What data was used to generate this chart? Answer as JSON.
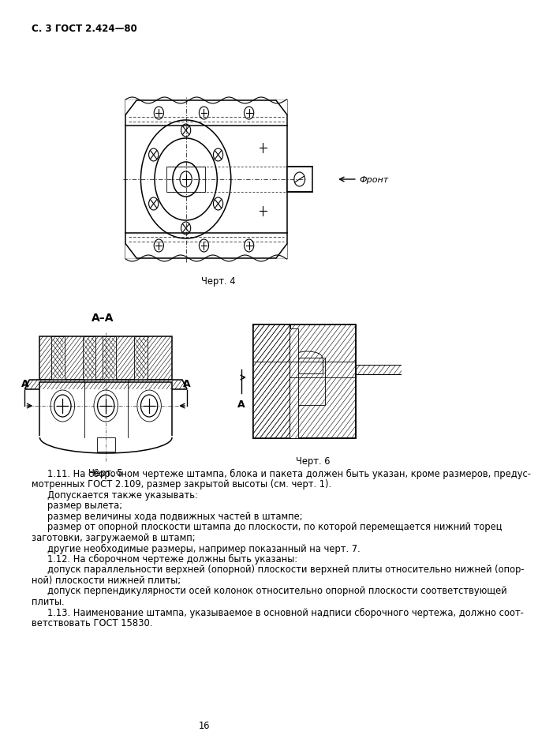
{
  "page_header": "С. 3 ГОСТ 2.424—80",
  "caption4": "Черт. 4",
  "caption5": "Черт. 5",
  "caption6": "Черт. 6",
  "front_label": "Фронт",
  "page_number": "16",
  "body_text": [
    {
      "indent": 1,
      "text": "1.11. На сборочном чертеже штампа, блока и пакета должен быть указан, кроме размеров, предус-"
    },
    {
      "indent": 0,
      "text": "мотренных ГОСТ 2.109, размер закрытой высоты (см. черт. 1)."
    },
    {
      "indent": 2,
      "text": "Допускается также указывать:"
    },
    {
      "indent": 2,
      "text": "размер вылета;"
    },
    {
      "indent": 2,
      "text": "размер величины хода подвижных частей в штампе;"
    },
    {
      "indent": 2,
      "text": "размер от опорной плоскости штампа до плоскости, по которой перемещается нижний торец"
    },
    {
      "indent": 0,
      "text": "заготовки, загружаемой в штамп;"
    },
    {
      "indent": 2,
      "text": "другие необходимые размеры, например показанный на черт. 7."
    },
    {
      "indent": 1,
      "text": "1.12. На сборочном чертеже должны быть указаны:"
    },
    {
      "indent": 2,
      "text": "допуск параллельности верхней (опорной) плоскости верхней плиты относительно нижней (опор-"
    },
    {
      "indent": 0,
      "text": "ной) плоскости нижней плиты;"
    },
    {
      "indent": 2,
      "text": "допуск перпендикулярности осей колонок относительно опорной плоскости соответствующей"
    },
    {
      "indent": 0,
      "text": "плиты."
    },
    {
      "indent": 1,
      "text": "1.13. Наименование штампа, указываемое в основной надписи сборочного чертежа, должно соот-"
    },
    {
      "indent": 0,
      "text": "ветствовать ГОСТ 15830."
    }
  ],
  "bg_color": "#ffffff",
  "text_color": "#000000",
  "font_size_body": 8.3,
  "font_size_header": 8.5,
  "font_size_caption": 8.3
}
